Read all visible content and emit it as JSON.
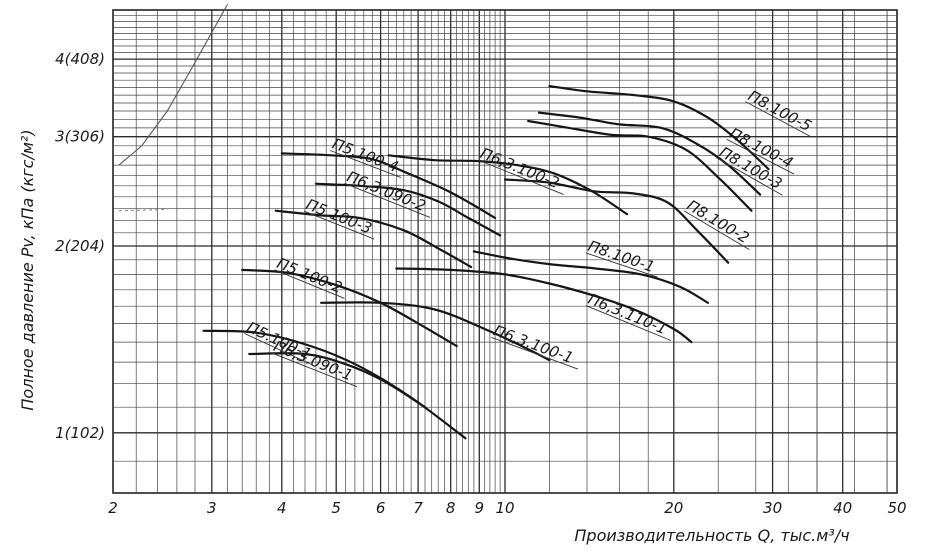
{
  "chart_data": {
    "type": "line",
    "x_scale": "log",
    "y_scale": "log",
    "xlabel": "Производительность Q, тыс.м³/ч",
    "ylabel": "Полное давление Pv, кПа (кгс/м²)",
    "xlim": [
      2,
      50
    ],
    "ylim": [
      0.8,
      4.8
    ],
    "grid": true,
    "x_ticks": [
      {
        "value": 2,
        "label": "2"
      },
      {
        "value": 3,
        "label": "3"
      },
      {
        "value": 4,
        "label": "4"
      },
      {
        "value": 5,
        "label": "5"
      },
      {
        "value": 6,
        "label": "6"
      },
      {
        "value": 7,
        "label": "7"
      },
      {
        "value": 8,
        "label": "8"
      },
      {
        "value": 9,
        "label": "9"
      },
      {
        "value": 10,
        "label": "10"
      },
      {
        "value": 20,
        "label": "20"
      },
      {
        "value": 30,
        "label": "30"
      },
      {
        "value": 40,
        "label": "40"
      },
      {
        "value": 50,
        "label": "50"
      }
    ],
    "y_ticks": [
      {
        "value": 1,
        "label": "1(102)"
      },
      {
        "value": 2,
        "label": "2(204)"
      },
      {
        "value": 3,
        "label": "3(306)"
      },
      {
        "value": 4,
        "label": "4(408)"
      }
    ],
    "series": [
      {
        "name": "П5.100-1",
        "label_at": [
          3.45,
          1.46
        ],
        "points": [
          [
            2.9,
            1.46
          ],
          [
            3.6,
            1.45
          ],
          [
            4.5,
            1.38
          ],
          [
            5.5,
            1.28
          ],
          [
            6.8,
            1.14
          ],
          [
            8.5,
            0.98
          ]
        ]
      },
      {
        "name": "П6,3.090-1",
        "label_at": [
          3.85,
          1.36
        ],
        "points": [
          [
            3.5,
            1.34
          ],
          [
            4.4,
            1.34
          ],
          [
            5.2,
            1.29
          ],
          [
            6.1,
            1.21
          ],
          [
            7.2,
            1.1
          ]
        ]
      },
      {
        "name": "П5.100-2",
        "label_at": [
          3.9,
          1.85
        ],
        "points": [
          [
            3.4,
            1.83
          ],
          [
            4.1,
            1.81
          ],
          [
            5.0,
            1.73
          ],
          [
            6.0,
            1.62
          ],
          [
            7.1,
            1.49
          ],
          [
            8.2,
            1.38
          ]
        ]
      },
      {
        "name": "П6,3.100-1",
        "label_at": [
          9.5,
          1.44
        ],
        "points": [
          [
            4.7,
            1.62
          ],
          [
            6.0,
            1.62
          ],
          [
            7.5,
            1.58
          ],
          [
            9.2,
            1.47
          ],
          [
            10.7,
            1.38
          ],
          [
            12.0,
            1.31
          ]
        ]
      },
      {
        "name": "П5.100-3",
        "label_at": [
          4.4,
          2.3
        ],
        "points": [
          [
            3.9,
            2.28
          ],
          [
            4.7,
            2.24
          ],
          [
            5.5,
            2.22
          ],
          [
            6.6,
            2.12
          ],
          [
            7.7,
            1.97
          ],
          [
            8.7,
            1.85
          ]
        ]
      },
      {
        "name": "П6,3.090-2",
        "label_at": [
          5.2,
          2.55
        ],
        "points": [
          [
            4.6,
            2.52
          ],
          [
            5.5,
            2.5
          ],
          [
            6.6,
            2.46
          ],
          [
            7.6,
            2.36
          ],
          [
            8.6,
            2.22
          ],
          [
            9.8,
            2.08
          ]
        ]
      },
      {
        "name": "П5.100-4",
        "label_at": [
          4.9,
          2.88
        ],
        "points": [
          [
            4.0,
            2.82
          ],
          [
            4.9,
            2.8
          ],
          [
            5.8,
            2.76
          ],
          [
            6.7,
            2.62
          ],
          [
            8.0,
            2.44
          ],
          [
            9.6,
            2.22
          ]
        ]
      },
      {
        "name": "П6,3.100-2",
        "label_at": [
          9.0,
          2.78
        ],
        "points": [
          [
            6.2,
            2.8
          ],
          [
            7.5,
            2.75
          ],
          [
            9.0,
            2.74
          ],
          [
            10.5,
            2.7
          ],
          [
            12.2,
            2.62
          ],
          [
            14.3,
            2.45
          ],
          [
            16.5,
            2.25
          ]
        ]
      },
      {
        "name": "П6,3.110-1",
        "label_at": [
          14.0,
          1.62
        ],
        "points": [
          [
            6.4,
            1.84
          ],
          [
            8.0,
            1.83
          ],
          [
            10.0,
            1.8
          ],
          [
            12.0,
            1.74
          ],
          [
            14.2,
            1.67
          ],
          [
            17.0,
            1.58
          ],
          [
            20.0,
            1.47
          ],
          [
            21.5,
            1.4
          ]
        ]
      },
      {
        "name": "П8.100-1",
        "label_at": [
          14.0,
          1.97
        ],
        "points": [
          [
            8.8,
            1.96
          ],
          [
            10.2,
            1.91
          ],
          [
            12.0,
            1.87
          ],
          [
            14.5,
            1.84
          ],
          [
            17.5,
            1.8
          ],
          [
            20.5,
            1.72
          ],
          [
            23.0,
            1.62
          ]
        ]
      },
      {
        "name": "П8.100-2",
        "label_at": [
          21.0,
          2.3
        ],
        "points": [
          [
            10.0,
            2.56
          ],
          [
            12.0,
            2.53
          ],
          [
            14.4,
            2.45
          ],
          [
            17.0,
            2.43
          ],
          [
            19.5,
            2.35
          ],
          [
            22.0,
            2.12
          ],
          [
            25.0,
            1.88
          ]
        ]
      },
      {
        "name": "П8.100-3",
        "label_at": [
          24.0,
          2.8
        ],
        "points": [
          [
            11.0,
            3.18
          ],
          [
            13.0,
            3.1
          ],
          [
            15.5,
            3.02
          ],
          [
            18.0,
            3.0
          ],
          [
            21.0,
            2.86
          ],
          [
            24.0,
            2.58
          ],
          [
            27.5,
            2.28
          ]
        ]
      },
      {
        "name": "П8.100-4",
        "label_at": [
          25.0,
          3.0
        ],
        "points": [
          [
            11.5,
            3.28
          ],
          [
            13.6,
            3.22
          ],
          [
            16.0,
            3.14
          ],
          [
            19.0,
            3.1
          ],
          [
            22.0,
            2.92
          ],
          [
            25.0,
            2.7
          ],
          [
            28.5,
            2.42
          ]
        ]
      },
      {
        "name": "П8.100-5",
        "label_at": [
          27.0,
          3.45
        ],
        "points": [
          [
            12.0,
            3.62
          ],
          [
            14.0,
            3.55
          ],
          [
            17.0,
            3.5
          ],
          [
            20.0,
            3.42
          ],
          [
            23.0,
            3.22
          ],
          [
            26.0,
            2.96
          ],
          [
            29.5,
            2.66
          ]
        ]
      }
    ]
  }
}
